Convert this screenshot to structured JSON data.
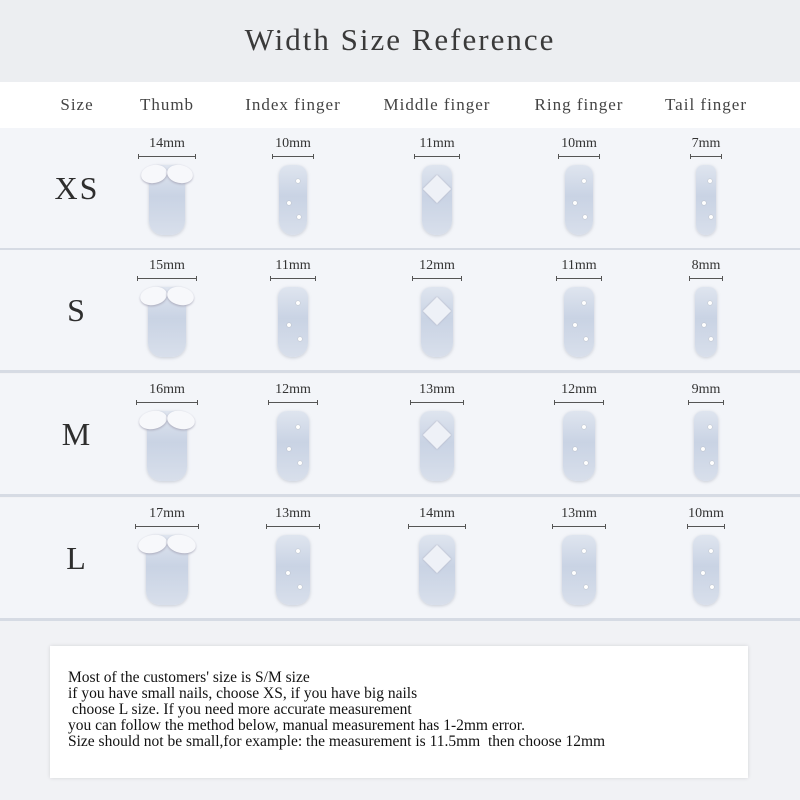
{
  "title": "Width Size Reference",
  "headers": [
    "Size",
    "Thumb",
    "Index finger",
    "Middle finger",
    "Ring finger",
    "Tail finger"
  ],
  "rows": [
    {
      "size": "XS",
      "widths": [
        "14mm",
        "10mm",
        "11mm",
        "10mm",
        "7mm"
      ]
    },
    {
      "size": "S",
      "widths": [
        "15mm",
        "11mm",
        "12mm",
        "11mm",
        "8mm"
      ]
    },
    {
      "size": "M",
      "widths": [
        "16mm",
        "12mm",
        "13mm",
        "12mm",
        "9mm"
      ]
    },
    {
      "size": "L",
      "widths": [
        "17mm",
        "13mm",
        "14mm",
        "13mm",
        "10mm"
      ]
    }
  ],
  "note": [
    "Most of the customers' size is S/M size",
    "if you have small nails, choose XS, if you have big nails",
    " choose L size. If you need more accurate measurement",
    "you can follow the method below, manual measurement has 1-2mm error.",
    "Size should not be small,for example: the measurement is 11.5mm  then choose 12mm"
  ]
}
